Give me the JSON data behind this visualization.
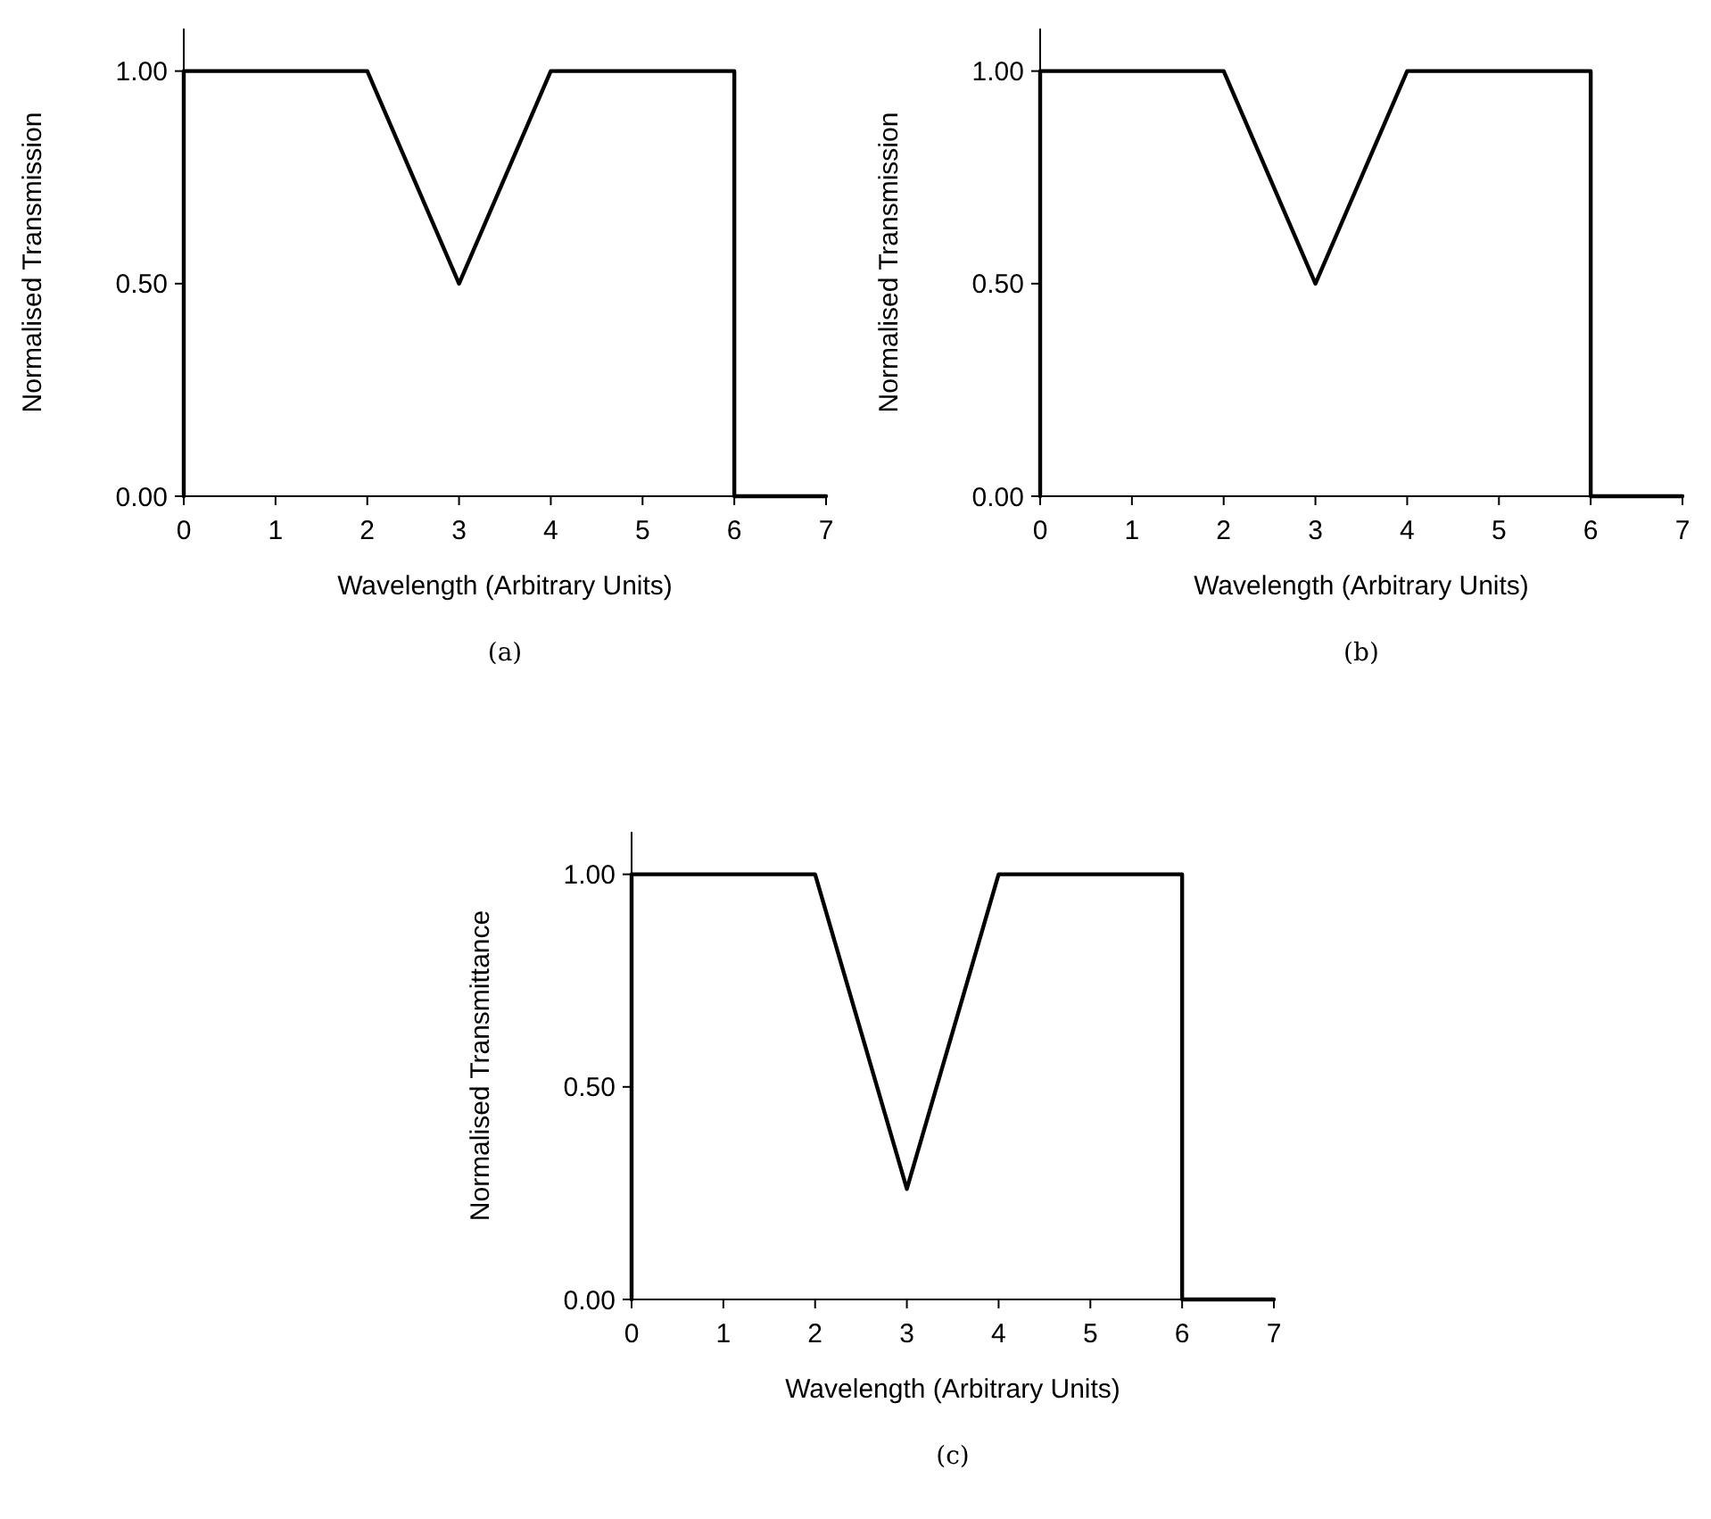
{
  "chart_data": [
    {
      "type": "line",
      "xlabel": "Wavelength (Arbitrary Units)",
      "ylabel": "Normalised Transmission",
      "annotations": [
        "(a)"
      ],
      "xlim": [
        0,
        7
      ],
      "ylim": [
        0,
        1.1
      ],
      "xticks": [
        0,
        1,
        2,
        3,
        4,
        5,
        6,
        7
      ],
      "yticks": [
        {
          "value": 0,
          "label": "0.00"
        },
        {
          "value": 0.5,
          "label": "0.50"
        },
        {
          "value": 1,
          "label": "1.00"
        }
      ],
      "x": [
        0,
        0,
        2,
        3,
        4,
        6,
        6,
        7
      ],
      "series": [
        {
          "color": "#000000",
          "values": [
            0,
            1,
            1,
            0.5,
            1,
            1,
            0,
            0
          ]
        }
      ]
    },
    {
      "type": "line",
      "xlabel": "Wavelength (Arbitrary Units)",
      "ylabel": "Normalised Transmission",
      "annotations": [
        "(b)"
      ],
      "xlim": [
        0,
        7
      ],
      "ylim": [
        0,
        1.1
      ],
      "xticks": [
        0,
        1,
        2,
        3,
        4,
        5,
        6,
        7
      ],
      "yticks": [
        {
          "value": 0,
          "label": "0.00"
        },
        {
          "value": 0.5,
          "label": "0.50"
        },
        {
          "value": 1,
          "label": "1.00"
        }
      ],
      "x": [
        0,
        0,
        2,
        3,
        4,
        6,
        6,
        7
      ],
      "series": [
        {
          "color": "#000000",
          "values": [
            0,
            1,
            1,
            0.5,
            1,
            1,
            0,
            0
          ]
        }
      ]
    },
    {
      "type": "line",
      "xlabel": "Wavelength (Arbitrary Units)",
      "ylabel": "Normalised Transmittance",
      "annotations": [
        "(c)"
      ],
      "xlim": [
        0,
        7
      ],
      "ylim": [
        0,
        1.1
      ],
      "xticks": [
        0,
        1,
        2,
        3,
        4,
        5,
        6,
        7
      ],
      "yticks": [
        {
          "value": 0,
          "label": "0.00"
        },
        {
          "value": 0.5,
          "label": "0.50"
        },
        {
          "value": 1,
          "label": "1.00"
        }
      ],
      "x": [
        0,
        0,
        2,
        3,
        4,
        6,
        6,
        7
      ],
      "series": [
        {
          "color": "#000000",
          "values": [
            0,
            1,
            1,
            0.26,
            1,
            1,
            0,
            0
          ]
        }
      ]
    }
  ]
}
